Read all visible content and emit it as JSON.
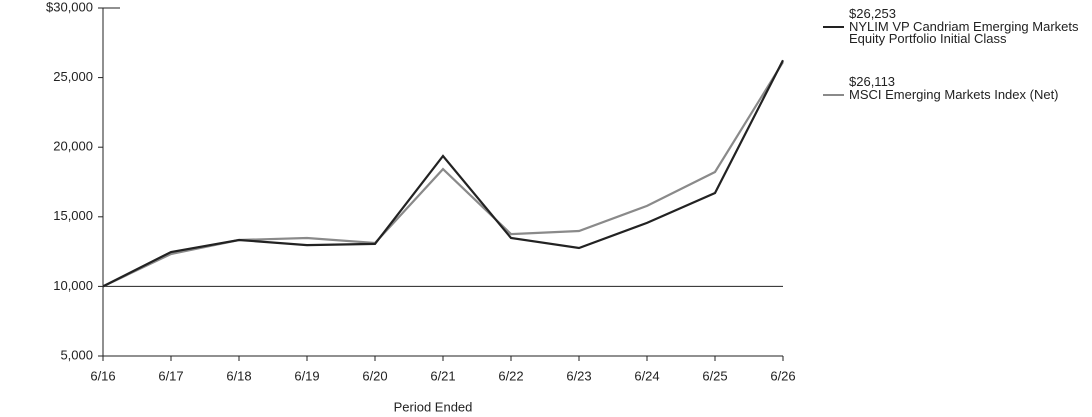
{
  "chart_data": {
    "type": "line",
    "categories": [
      "6/16",
      "6/17",
      "6/18",
      "6/19",
      "6/20",
      "6/21",
      "6/22",
      "6/23",
      "6/24",
      "6/25",
      "6/26"
    ],
    "series": [
      {
        "name": "NYLIM VP Candriam Emerging Markets Equity Portfolio Initial Class",
        "color": "#222222",
        "values": [
          10000,
          12470,
          13330,
          12970,
          13050,
          19370,
          13480,
          12760,
          14560,
          16710,
          26253
        ],
        "value_labels": [
          null,
          null,
          null,
          null,
          null,
          null,
          null,
          null,
          null,
          null,
          "$26,253"
        ]
      },
      {
        "name": "MSCI Emerging Markets Index (Net)",
        "color": "#8a8a8a",
        "values": [
          10000,
          12330,
          13330,
          13480,
          13120,
          18430,
          13760,
          13980,
          15780,
          18220,
          26113
        ],
        "value_labels": [
          null,
          null,
          null,
          null,
          null,
          null,
          null,
          null,
          null,
          null,
          "$26,113"
        ]
      }
    ],
    "x_label": "Period Ended",
    "ylim": [
      5000,
      30000
    ],
    "yticks": [
      {
        "value": 5000,
        "label": "5,000"
      },
      {
        "value": 10000,
        "label": "10,000"
      },
      {
        "value": 15000,
        "label": "15,000"
      },
      {
        "value": 20000,
        "label": "20,000"
      },
      {
        "value": 25000,
        "label": "25,000"
      },
      {
        "value": 30000,
        "label": "$30,000"
      }
    ],
    "reference_line": 10000,
    "grid": false,
    "legend": "right"
  }
}
